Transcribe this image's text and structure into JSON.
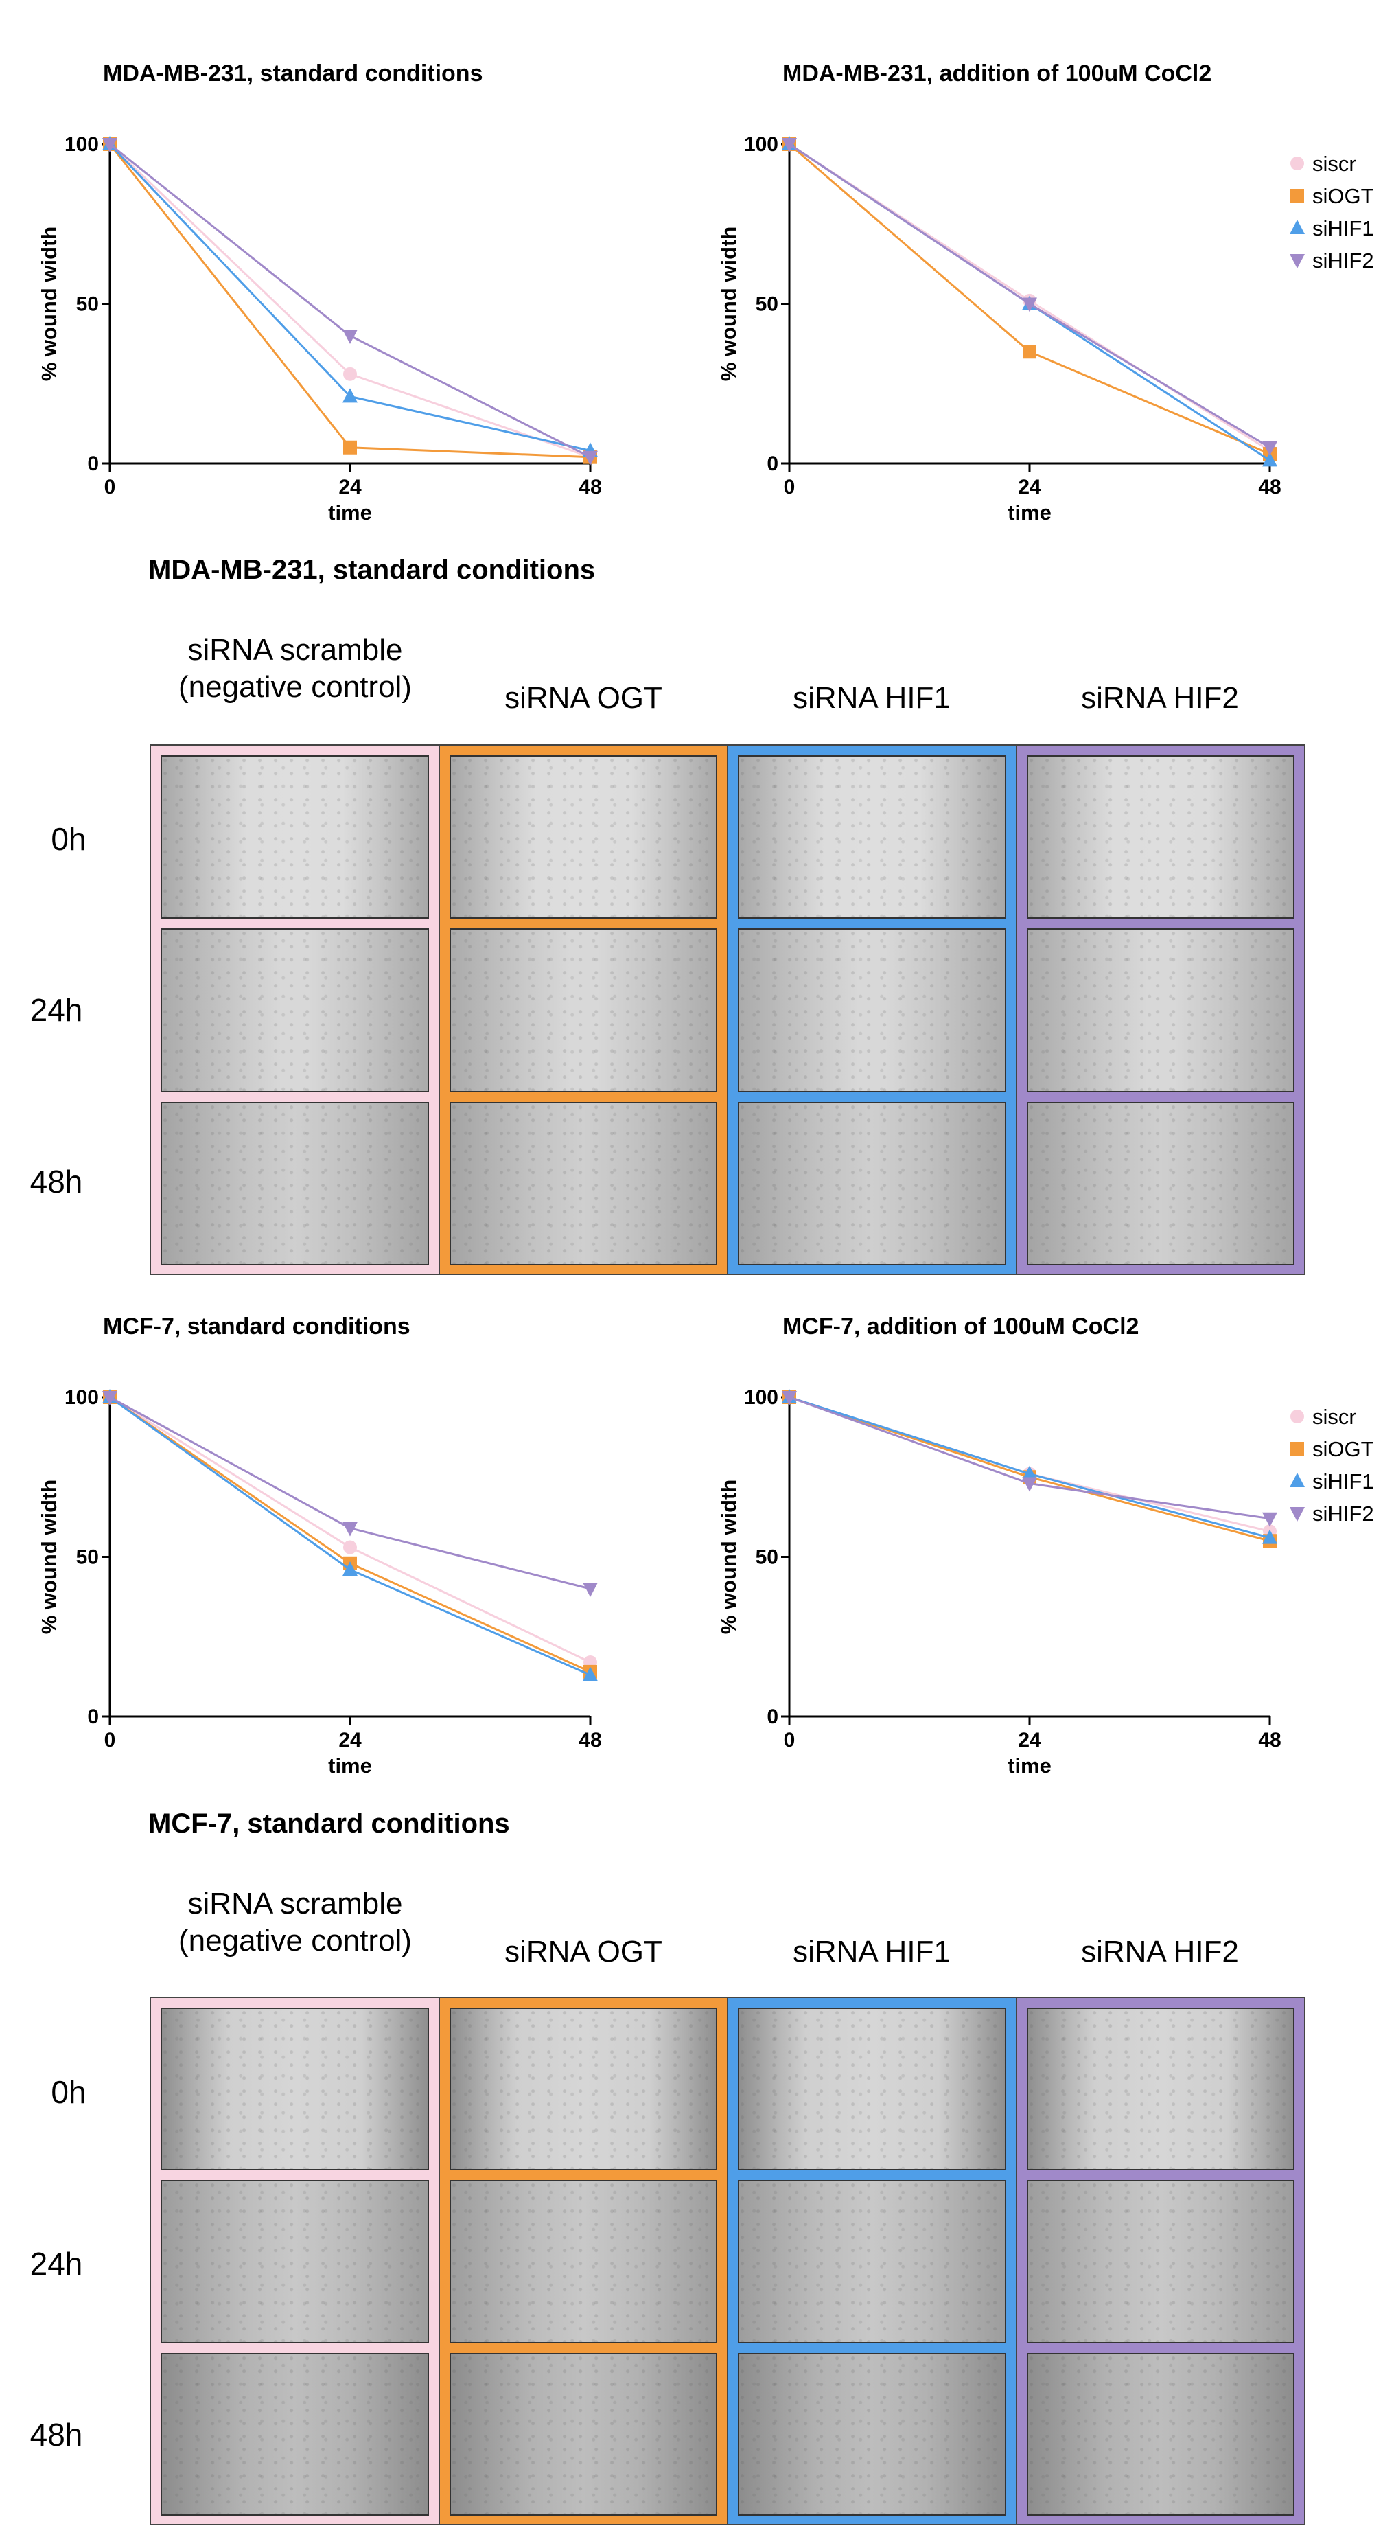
{
  "chart_data": [
    {
      "type": "line",
      "title": "MDA-MB-231,  standard conditions",
      "xlabel": "time",
      "ylabel": "% wound width",
      "xlim": [
        0,
        48
      ],
      "ylim": [
        0,
        100
      ],
      "xticks": [
        "0",
        "24",
        "48"
      ],
      "yticks": [
        "0",
        "50",
        "100"
      ],
      "legend": false,
      "x": [
        0,
        24,
        48
      ],
      "series": [
        {
          "name": "siscr",
          "color": "#f7cfdd",
          "marker": "circle",
          "values": [
            100,
            28,
            2
          ]
        },
        {
          "name": "siOGT",
          "color": "#f39a3a",
          "marker": "square",
          "values": [
            100,
            5,
            2
          ]
        },
        {
          "name": "siHIF1",
          "color": "#4f9ee8",
          "marker": "triangle-up",
          "values": [
            100,
            21,
            4
          ]
        },
        {
          "name": "siHIF2",
          "color": "#a089c9",
          "marker": "triangle-down",
          "values": [
            100,
            40,
            2
          ]
        }
      ]
    },
    {
      "type": "line",
      "title": "MDA-MB-231,  addition of 100uM CoCl2",
      "xlabel": "time",
      "ylabel": "% wound width",
      "xlim": [
        0,
        48
      ],
      "ylim": [
        0,
        100
      ],
      "xticks": [
        "0",
        "24",
        "48"
      ],
      "yticks": [
        "0",
        "50",
        "100"
      ],
      "legend": true,
      "legend_position": "top-right",
      "x": [
        0,
        24,
        48
      ],
      "series": [
        {
          "name": "siscr",
          "color": "#f7cfdd",
          "marker": "circle",
          "values": [
            100,
            51,
            4
          ]
        },
        {
          "name": "siOGT",
          "color": "#f39a3a",
          "marker": "square",
          "values": [
            100,
            35,
            3
          ]
        },
        {
          "name": "siHIF1",
          "color": "#4f9ee8",
          "marker": "triangle-up",
          "values": [
            100,
            50,
            1
          ]
        },
        {
          "name": "siHIF2",
          "color": "#a089c9",
          "marker": "triangle-down",
          "values": [
            100,
            50,
            5
          ]
        }
      ]
    },
    {
      "type": "line",
      "title": "MCF-7,  standard conditions",
      "xlabel": "time",
      "ylabel": "% wound width",
      "xlim": [
        0,
        48
      ],
      "ylim": [
        0,
        100
      ],
      "xticks": [
        "0",
        "24",
        "48"
      ],
      "yticks": [
        "0",
        "50",
        "100"
      ],
      "legend": false,
      "x": [
        0,
        24,
        48
      ],
      "series": [
        {
          "name": "siscr",
          "color": "#f7cfdd",
          "marker": "circle",
          "values": [
            100,
            53,
            17
          ]
        },
        {
          "name": "siOGT",
          "color": "#f39a3a",
          "marker": "square",
          "values": [
            100,
            48,
            14
          ]
        },
        {
          "name": "siHIF1",
          "color": "#4f9ee8",
          "marker": "triangle-up",
          "values": [
            100,
            46,
            13
          ]
        },
        {
          "name": "siHIF2",
          "color": "#a089c9",
          "marker": "triangle-down",
          "values": [
            100,
            59,
            40
          ]
        }
      ]
    },
    {
      "type": "line",
      "title": "MCF-7,  addition of 100uM CoCl2",
      "xlabel": "time",
      "ylabel": "% wound width",
      "xlim": [
        0,
        48
      ],
      "ylim": [
        0,
        100
      ],
      "xticks": [
        "0",
        "24",
        "48"
      ],
      "yticks": [
        "0",
        "50",
        "100"
      ],
      "legend": true,
      "legend_position": "top-right",
      "x": [
        0,
        24,
        48
      ],
      "series": [
        {
          "name": "siscr",
          "color": "#f7cfdd",
          "marker": "circle",
          "values": [
            100,
            76,
            58
          ]
        },
        {
          "name": "siOGT",
          "color": "#f39a3a",
          "marker": "square",
          "values": [
            100,
            75,
            55
          ]
        },
        {
          "name": "siHIF1",
          "color": "#4f9ee8",
          "marker": "triangle-up",
          "values": [
            100,
            76,
            56
          ]
        },
        {
          "name": "siHIF2",
          "color": "#a089c9",
          "marker": "triangle-down",
          "values": [
            100,
            73,
            62
          ]
        }
      ]
    }
  ],
  "panels": [
    {
      "title": "MDA-MB-231,  standard conditions",
      "columns": [
        "siRNA scramble\n(negative control)",
        "siRNA OGT",
        "siRNA HIF1",
        "siRNA HIF2"
      ],
      "column_colors": [
        "#f8d5e1",
        "#f39a3a",
        "#4f9ee8",
        "#a089c9"
      ],
      "rows": [
        "0h",
        "24h",
        "48h"
      ]
    },
    {
      "title": "MCF-7,  standard conditions",
      "columns": [
        "siRNA scramble\n(negative control)",
        "siRNA OGT",
        "siRNA HIF1",
        "siRNA HIF2"
      ],
      "column_colors": [
        "#f8d5e1",
        "#f39a3a",
        "#4f9ee8",
        "#a089c9"
      ],
      "rows": [
        "0h",
        "24h",
        "48h"
      ]
    }
  ]
}
